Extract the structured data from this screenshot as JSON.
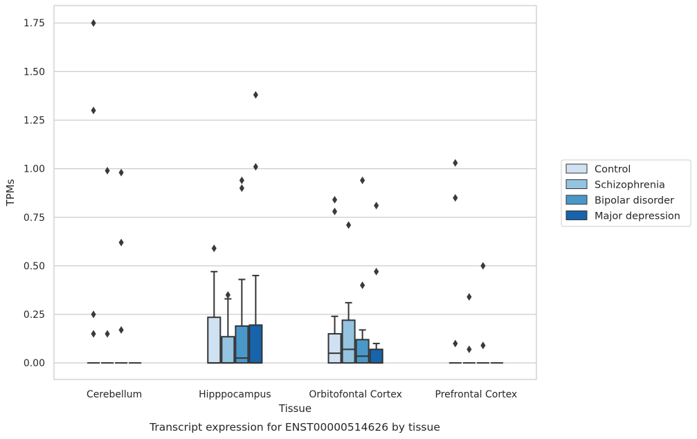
{
  "chart_data": {
    "type": "box",
    "caption": "Transcript expression for ENST00000514626 by tissue",
    "xlabel": "Tissue",
    "ylabel": "TPMs",
    "ylim": [
      -0.085,
      1.84
    ],
    "yticks": [
      "0.00",
      "0.25",
      "0.50",
      "0.75",
      "1.00",
      "1.25",
      "1.50",
      "1.75"
    ],
    "ytick_values": [
      0,
      0.25,
      0.5,
      0.75,
      1.0,
      1.25,
      1.5,
      1.75
    ],
    "grid": "horizontal",
    "legend_placement": "right, outside",
    "categories": [
      "Cerebellum",
      "Hipppocampus",
      "Orbitofontal Cortex",
      "Prefrontal Cortex"
    ],
    "series": [
      {
        "name": "Control",
        "color": "#d0e1f2",
        "boxes": [
          {
            "min": 0,
            "q1": 0,
            "median": 0,
            "q3": 0,
            "max": 0,
            "outliers": [
              1.75,
              1.3,
              0.25,
              0.15
            ]
          },
          {
            "min": 0,
            "q1": 0,
            "median": 0,
            "q3": 0.235,
            "max": 0.47,
            "outliers": [
              0.59
            ]
          },
          {
            "min": 0,
            "q1": 0,
            "median": 0.05,
            "q3": 0.15,
            "max": 0.24,
            "outliers": [
              0.84,
              0.78
            ]
          },
          {
            "min": 0,
            "q1": 0,
            "median": 0,
            "q3": 0,
            "max": 0,
            "outliers": [
              1.03,
              0.85,
              0.1
            ]
          }
        ]
      },
      {
        "name": "Schizophrenia",
        "color": "#94c4df",
        "boxes": [
          {
            "min": 0,
            "q1": 0,
            "median": 0,
            "q3": 0,
            "max": 0,
            "outliers": [
              0.99,
              0.15
            ]
          },
          {
            "min": 0,
            "q1": 0,
            "median": 0,
            "q3": 0.135,
            "max": 0.33,
            "outliers": [
              0.35
            ]
          },
          {
            "min": 0,
            "q1": 0,
            "median": 0.07,
            "q3": 0.22,
            "max": 0.31,
            "outliers": [
              0.71
            ]
          },
          {
            "min": 0,
            "q1": 0,
            "median": 0,
            "q3": 0,
            "max": 0,
            "outliers": [
              0.34,
              0.07
            ]
          }
        ]
      },
      {
        "name": "Bipolar disorder",
        "color": "#4a98c9",
        "boxes": [
          {
            "min": 0,
            "q1": 0,
            "median": 0,
            "q3": 0,
            "max": 0,
            "outliers": [
              0.98,
              0.62,
              0.17
            ]
          },
          {
            "min": 0,
            "q1": 0,
            "median": 0.025,
            "q3": 0.19,
            "max": 0.43,
            "outliers": [
              0.94,
              0.9
            ]
          },
          {
            "min": 0,
            "q1": 0,
            "median": 0.035,
            "q3": 0.12,
            "max": 0.17,
            "outliers": [
              0.94,
              0.4
            ]
          },
          {
            "min": 0,
            "q1": 0,
            "median": 0,
            "q3": 0,
            "max": 0,
            "outliers": [
              0.5,
              0.09
            ]
          }
        ]
      },
      {
        "name": "Major depression",
        "color": "#1764ab",
        "boxes": [
          {
            "min": 0,
            "q1": 0,
            "median": 0,
            "q3": 0,
            "max": 0,
            "outliers": []
          },
          {
            "min": 0,
            "q1": 0,
            "median": 0,
            "q3": 0.195,
            "max": 0.45,
            "outliers": [
              1.38,
              1.01
            ]
          },
          {
            "min": 0,
            "q1": 0,
            "median": 0,
            "q3": 0.07,
            "max": 0.1,
            "outliers": [
              0.81,
              0.47
            ]
          },
          {
            "min": 0,
            "q1": 0,
            "median": 0,
            "q3": 0,
            "max": 0,
            "outliers": []
          }
        ]
      }
    ]
  }
}
